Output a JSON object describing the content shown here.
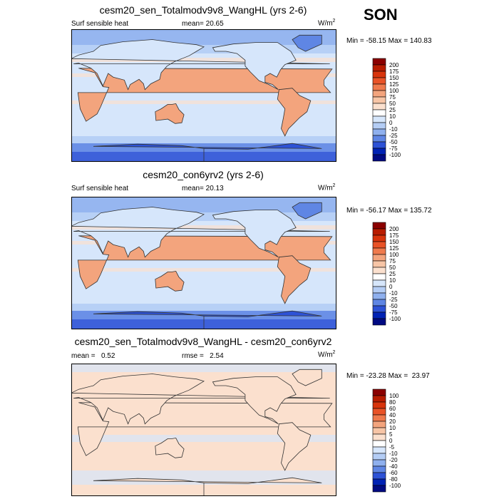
{
  "season": "SON",
  "colors": {
    "land_outline": "#333333",
    "land_fill": "#fbd9c4",
    "ocean_light": "#d6e6fb"
  },
  "chart_data": [
    {
      "type": "heatmap",
      "title": "cesm20_sen_Totalmodv9v8_WangHL (yrs 2-6)",
      "left_label": "Surf sensible heat",
      "center_label": "mean=  20.65",
      "units_base": "W/m",
      "units_exp": "2",
      "minmax": "Min = -58.15 Max = 140.83",
      "min": -58.15,
      "max": 140.83,
      "mean": 20.65,
      "levels": [
        "200",
        "175",
        "150",
        "125",
        "100",
        "75",
        "50",
        "25",
        "10",
        "0",
        "-10",
        "-25",
        "-50",
        "-75",
        "-100"
      ],
      "colors": [
        "#8b0000",
        "#b81c00",
        "#d8340c",
        "#e95327",
        "#ef7a4d",
        "#f3a47d",
        "#f7c5a6",
        "#fbe0ce",
        "#ffffff",
        "#d6e6fb",
        "#b4cdf5",
        "#8fb0ee",
        "#5f86e4",
        "#2d52d6",
        "#0022b4",
        "#000a82"
      ]
    },
    {
      "type": "heatmap",
      "title": "cesm20_con6yrv2 (yrs 2-6)",
      "left_label": "Surf sensible heat",
      "center_label": "mean=  20.13",
      "units_base": "W/m",
      "units_exp": "2",
      "minmax": "Min = -56.17 Max = 135.72",
      "min": -56.17,
      "max": 135.72,
      "mean": 20.13,
      "levels": [
        "200",
        "175",
        "150",
        "125",
        "100",
        "75",
        "50",
        "25",
        "10",
        "0",
        "-10",
        "-25",
        "-50",
        "-75",
        "-100"
      ],
      "colors": [
        "#8b0000",
        "#b81c00",
        "#d8340c",
        "#e95327",
        "#ef7a4d",
        "#f3a47d",
        "#f7c5a6",
        "#fbe0ce",
        "#ffffff",
        "#d6e6fb",
        "#b4cdf5",
        "#8fb0ee",
        "#5f86e4",
        "#2d52d6",
        "#0022b4",
        "#000a82"
      ]
    },
    {
      "type": "heatmap",
      "title": "cesm20_sen_Totalmodv9v8_WangHL - cesm20_con6yrv2",
      "left_label": "mean =   0.52",
      "center_label": "rmse =   2.54",
      "units_base": "W/m",
      "units_exp": "2",
      "minmax": "Min = -23.28 Max =  23.97",
      "min": -23.28,
      "max": 23.97,
      "mean": 0.52,
      "rmse": 2.54,
      "levels": [
        "100",
        "80",
        "60",
        "40",
        "20",
        "10",
        "5",
        "0",
        "-5",
        "-10",
        "-20",
        "-40",
        "-60",
        "-80",
        "-100"
      ],
      "colors": [
        "#8b0000",
        "#b81c00",
        "#d8340c",
        "#e95327",
        "#ef7a4d",
        "#f3a47d",
        "#f7c5a6",
        "#fbe0ce",
        "#ffffff",
        "#d6e6fb",
        "#b4cdf5",
        "#8fb0ee",
        "#5f86e4",
        "#2d52d6",
        "#0022b4",
        "#000a82"
      ]
    }
  ]
}
